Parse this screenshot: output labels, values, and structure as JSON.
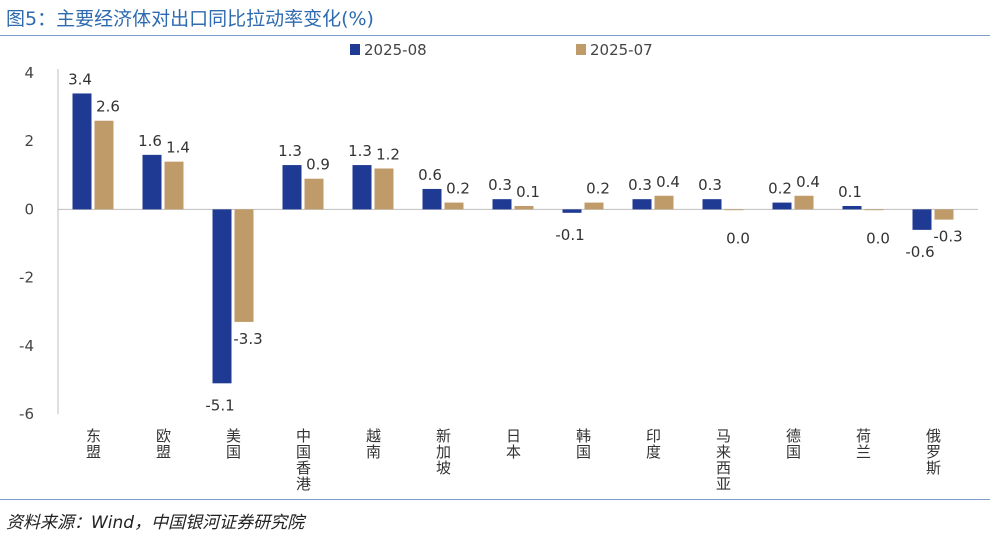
{
  "title": "图5：主要经济体对出口同比拉动率变化(%)",
  "source": "资料来源：Wind，中国银河证券研究院",
  "colors": {
    "series1": "#1f3a93",
    "series2": "#bf9b6a",
    "axis": "#bfbfbf",
    "title": "#2e6bb0"
  },
  "chart_data": {
    "type": "bar",
    "title": "",
    "xlabel": "",
    "ylabel": "",
    "ylim": [
      -6,
      4
    ],
    "yticks": [
      "4",
      "2",
      "0",
      "-2",
      "-4",
      "-6"
    ],
    "grid": false,
    "legend_position": "top",
    "categories": [
      "东盟",
      "欧盟",
      "美国",
      "中国香港",
      "越南",
      "新加坡",
      "日本",
      "韩国",
      "印度",
      "马来西亚",
      "德国",
      "荷兰",
      "俄罗斯"
    ],
    "series": [
      {
        "name": "2025-08",
        "values": [
          3.4,
          1.6,
          -5.1,
          1.3,
          1.3,
          0.6,
          0.3,
          -0.1,
          0.3,
          0.3,
          0.2,
          0.1,
          -0.6
        ],
        "labels": [
          "3.4",
          "1.6",
          "-5.1",
          "1.3",
          "1.3",
          "0.6",
          "0.3",
          "-0.1",
          "0.3",
          "0.3",
          "0.2",
          "0.1",
          "-0.6"
        ]
      },
      {
        "name": "2025-07",
        "values": [
          2.6,
          1.4,
          -3.3,
          0.9,
          1.2,
          0.2,
          0.1,
          0.2,
          0.4,
          0.0,
          0.4,
          0.0,
          -0.3
        ],
        "labels": [
          "2.6",
          "1.4",
          "-3.3",
          "0.9",
          "1.2",
          "0.2",
          "0.1",
          "0.2",
          "0.4",
          "0.0",
          "0.4",
          "0.0",
          "-0.3"
        ]
      }
    ]
  }
}
